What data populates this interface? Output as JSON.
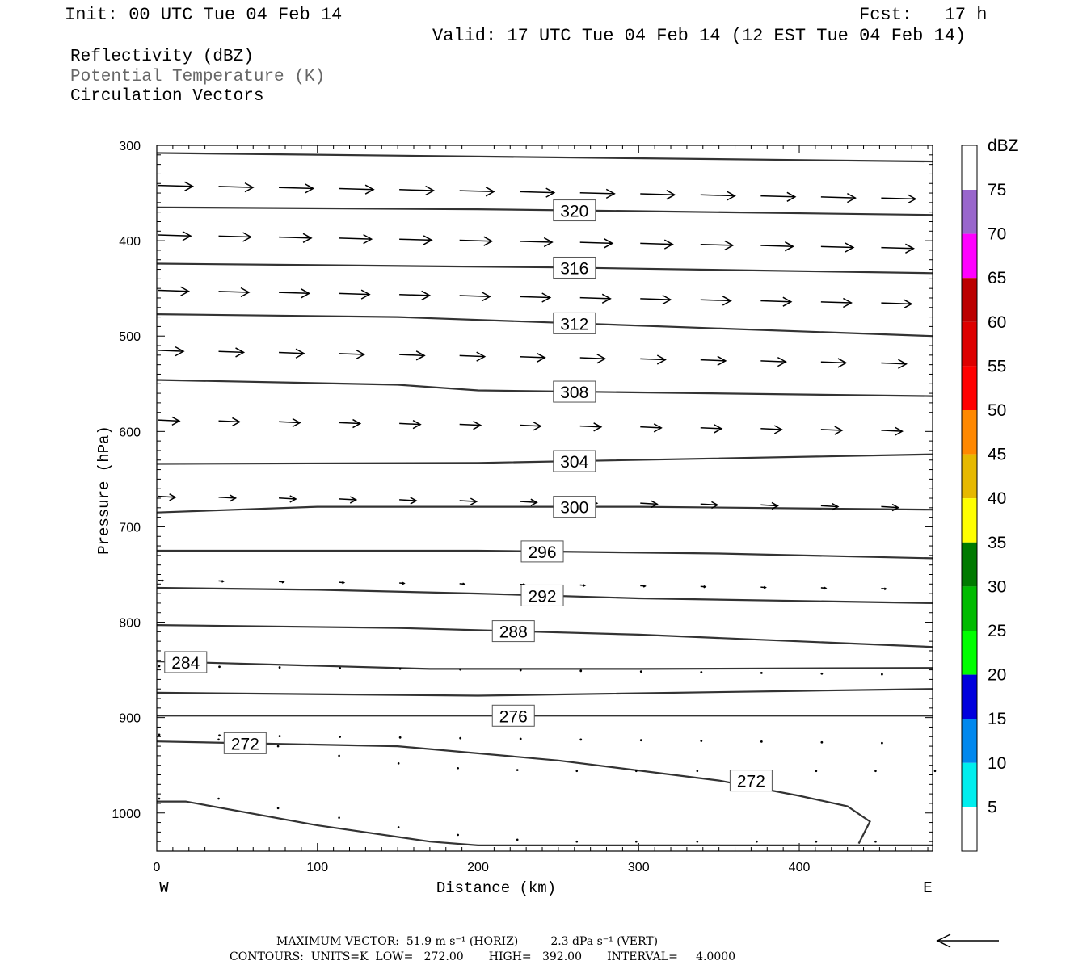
{
  "header": {
    "init": "Init: 00 UTC Tue 04 Feb 14",
    "fcst": "Fcst:   17 h",
    "valid": "Valid: 17 UTC Tue 04 Feb 14 (12 EST Tue 04 Feb 14)"
  },
  "fields": {
    "reflectivity": "Reflectivity (dBZ)",
    "theta": "Potential Temperature (K)",
    "vectors": "Circulation Vectors"
  },
  "footer": {
    "max_vector": "MAXIMUM VECTOR:  51.9 m s⁻¹ (HORIZ)         2.3 dPa s⁻¹ (VERT)",
    "contours": "CONTOURS:  UNITS=K  LOW=   272.00       HIGH=   392.00       INTERVAL=     4.0000"
  },
  "colors": {
    "contour": "#333333",
    "frame": "#000000"
  },
  "chart_data": {
    "type": "contour",
    "xlabel": "Distance (km)",
    "ylabel": "Pressure (hPa)",
    "x_ticks": [
      0,
      100,
      200,
      300,
      400
    ],
    "y_ticks": [
      300,
      400,
      500,
      600,
      700,
      800,
      900,
      1000
    ],
    "xlim": [
      0,
      483
    ],
    "ylim": [
      300,
      1040
    ],
    "x_end_labels": {
      "left": "W",
      "right": "E"
    },
    "colorbar": {
      "title": "dBZ",
      "labels": [
        "75",
        "70",
        "65",
        "60",
        "55",
        "50",
        "45",
        "40",
        "35",
        "30",
        "25",
        "20",
        "15",
        "10",
        "5"
      ],
      "bins": [
        {
          "color": "#9966cc"
        },
        {
          "color": "#ff00ff"
        },
        {
          "color": "#bb0000"
        },
        {
          "color": "#dd0000"
        },
        {
          "color": "#ff0000"
        },
        {
          "color": "#ff8800"
        },
        {
          "color": "#e6b800"
        },
        {
          "color": "#ffff00"
        },
        {
          "color": "#007a00"
        },
        {
          "color": "#00bb00"
        },
        {
          "color": "#00ff00"
        },
        {
          "color": "#0000dd"
        },
        {
          "color": "#0088ee"
        },
        {
          "color": "#00eeee"
        },
        {
          "color": "#ffffff"
        }
      ]
    },
    "theta_contours": [
      {
        "label": "320",
        "points": [
          [
            0,
            310
          ],
          [
            250,
            313
          ],
          [
            483,
            317
          ]
        ]
      },
      {
        "label": "324_unlabeled",
        "points": [
          [
            0,
            310
          ],
          [
            483,
            317
          ]
        ]
      },
      {
        "label": "320",
        "points": [
          [
            0,
            365
          ],
          [
            200,
            367
          ],
          [
            300,
            369
          ],
          [
            483,
            373
          ]
        ],
        "label_at": 260
      },
      {
        "label": "316",
        "points": [
          [
            0,
            424
          ],
          [
            250,
            428
          ],
          [
            483,
            434
          ]
        ],
        "label_at": 260
      },
      {
        "label": "312",
        "points": [
          [
            0,
            477
          ],
          [
            150,
            480
          ],
          [
            250,
            486
          ],
          [
            483,
            500
          ]
        ],
        "label_at": 260
      },
      {
        "label": "308",
        "points": [
          [
            0,
            546
          ],
          [
            150,
            551
          ],
          [
            200,
            557
          ],
          [
            483,
            563
          ]
        ],
        "label_at": 260
      },
      {
        "label": "304",
        "points": [
          [
            0,
            634
          ],
          [
            200,
            633
          ],
          [
            483,
            624
          ]
        ],
        "label_at": 260
      },
      {
        "label": "300",
        "points": [
          [
            0,
            685
          ],
          [
            100,
            679
          ],
          [
            300,
            679
          ],
          [
            483,
            682
          ]
        ],
        "label_at": 260
      },
      {
        "label": "296",
        "points": [
          [
            0,
            725
          ],
          [
            200,
            725
          ],
          [
            350,
            728
          ],
          [
            483,
            733
          ]
        ],
        "label_at": 240
      },
      {
        "label": "292",
        "points": [
          [
            0,
            764
          ],
          [
            100,
            766
          ],
          [
            200,
            770
          ],
          [
            300,
            775
          ],
          [
            483,
            780
          ]
        ],
        "label_at": 240
      },
      {
        "label": "288",
        "points": [
          [
            0,
            803
          ],
          [
            150,
            806
          ],
          [
            300,
            813
          ],
          [
            483,
            826
          ]
        ],
        "label_at": 222
      },
      {
        "label": "284",
        "points": [
          [
            0,
            841
          ],
          [
            170,
            849
          ],
          [
            300,
            849
          ],
          [
            483,
            848
          ]
        ],
        "label_at": 18
      },
      {
        "label": "280_unlabeled",
        "points": [
          [
            0,
            874
          ],
          [
            200,
            877
          ],
          [
            400,
            872
          ],
          [
            483,
            870
          ]
        ]
      },
      {
        "label": "276",
        "points": [
          [
            0,
            898
          ],
          [
            200,
            898
          ],
          [
            483,
            898
          ]
        ],
        "label_at": 222
      },
      {
        "label": "272",
        "points": [
          [
            0,
            925
          ],
          [
            150,
            930
          ],
          [
            250,
            945
          ],
          [
            350,
            966
          ],
          [
            400,
            982
          ],
          [
            430,
            993
          ],
          [
            444,
            1009
          ],
          [
            437,
            1032
          ]
        ],
        "label_at": 55
      },
      {
        "label": "272",
        "points": [
          [
            0,
            925
          ],
          [
            444,
            1009
          ]
        ],
        "label_at": 370,
        "label_only": true
      },
      {
        "label": "ground",
        "points": [
          [
            0,
            988
          ],
          [
            18,
            988
          ],
          [
            100,
            1013
          ],
          [
            170,
            1030
          ],
          [
            200,
            1034
          ],
          [
            483,
            1034
          ]
        ]
      }
    ],
    "vectors_note": "horizontal circulation vectors, westerly (pointing east)",
    "vector_rows": [
      {
        "p": 342,
        "len": 0.85
      },
      {
        "p": 394,
        "len": 0.8
      },
      {
        "p": 452,
        "len": 0.75
      },
      {
        "p": 515,
        "len": 0.62
      },
      {
        "p": 588,
        "len": 0.52
      },
      {
        "p": 668,
        "len": 0.42
      },
      {
        "p": 756,
        "len": 0.12
      },
      {
        "p": 846,
        "len": 0.01
      },
      {
        "p": 918,
        "len": 0.01
      }
    ],
    "reference_vector": "left-pointing arrow"
  }
}
